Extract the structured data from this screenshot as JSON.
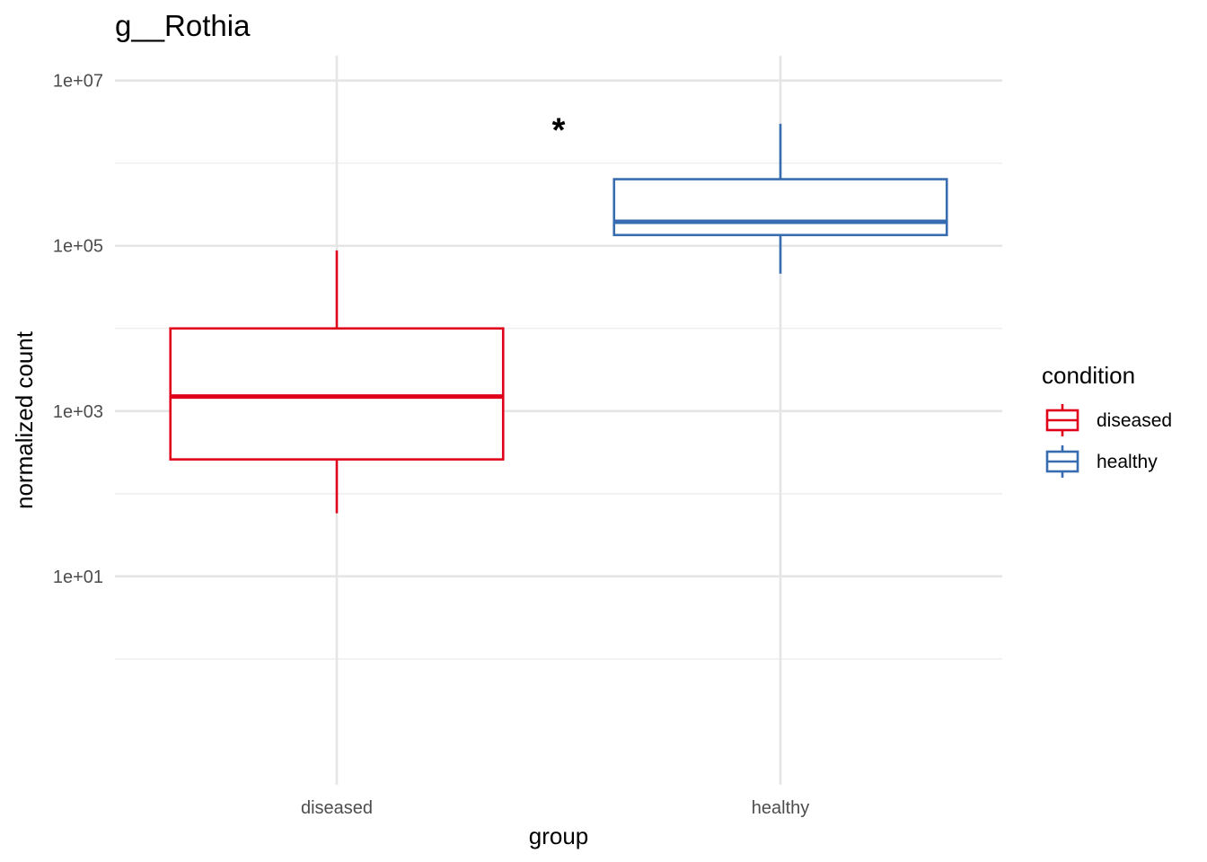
{
  "chart_data": {
    "type": "box",
    "title": "g__Rothia",
    "xlabel": "group",
    "ylabel": "normalized count",
    "y_scale": "log10",
    "ylim": [
      0.03,
      20000000
    ],
    "y_ticks": [
      10,
      1000,
      100000,
      10000000
    ],
    "y_tick_labels": [
      "1e+01",
      "1e+03",
      "1e+05",
      "1e+07"
    ],
    "y_minor_gridlines": [
      1,
      100,
      10000,
      1000000
    ],
    "grid": true,
    "categories": [
      "diseased",
      "healthy"
    ],
    "series": [
      {
        "name": "diseased",
        "color": "#e0001a",
        "whisker_low": 58,
        "q1": 260,
        "median": 1500,
        "q3": 10000,
        "whisker_high": 88000
      },
      {
        "name": "healthy",
        "color": "#386cb0",
        "whisker_low": 46000,
        "q1": 135000,
        "median": 195000,
        "q3": 640000,
        "whisker_high": 3000000
      }
    ],
    "annotations": [
      {
        "text": "*",
        "between": [
          "diseased",
          "healthy"
        ],
        "y": 3500000
      }
    ],
    "legend": {
      "title": "condition",
      "placement": "right",
      "entries": [
        "diseased",
        "healthy"
      ]
    }
  }
}
